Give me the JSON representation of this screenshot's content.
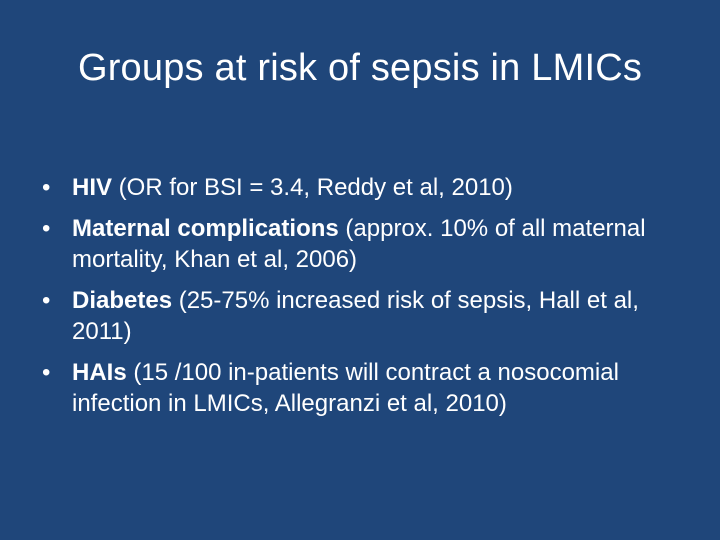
{
  "slide": {
    "title": "Groups at risk of sepsis in LMICs",
    "bullets": [
      {
        "term": "HIV",
        "detail": " (OR for BSI = 3.4, Reddy et al, 2010)"
      },
      {
        "term": "Maternal complications",
        "detail": " (approx. 10% of all maternal mortality, Khan et al, 2006)"
      },
      {
        "term": "Diabetes",
        "detail": " (25-75% increased risk of sepsis, Hall et al, 2011)"
      },
      {
        "term": "HAIs",
        "detail": " (15 /100 in-patients will contract a nosocomial infection in LMICs, Allegranzi et al, 2010)"
      }
    ]
  }
}
